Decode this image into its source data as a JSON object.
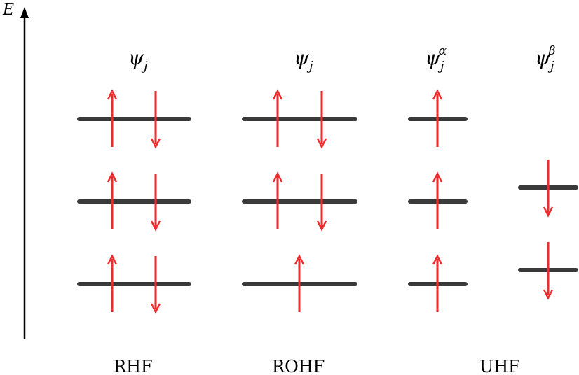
{
  "axis": {
    "label": "E"
  },
  "colors": {
    "level": "#3a3a3a",
    "arrow": "#ef2b2d",
    "axis": "#000000"
  },
  "methods": [
    {
      "name": "RHF",
      "orbital_labels": [
        {
          "base": "ψ",
          "sub": "j",
          "sup": ""
        }
      ]
    },
    {
      "name": "ROHF",
      "orbital_labels": [
        {
          "base": "ψ",
          "sub": "j",
          "sup": ""
        }
      ]
    },
    {
      "name": "UHF",
      "orbital_labels": [
        {
          "base": "ψ",
          "sub": "j",
          "sup": "α"
        },
        {
          "base": "ψ",
          "sub": "j",
          "sup": "β"
        }
      ]
    }
  ],
  "levels": {
    "RHF": [
      {
        "level": 1,
        "spins": [
          "up",
          "down"
        ]
      },
      {
        "level": 2,
        "spins": [
          "up",
          "down"
        ]
      },
      {
        "level": 3,
        "spins": [
          "up",
          "down"
        ]
      }
    ],
    "ROHF": [
      {
        "level": 1,
        "spins": [
          "up",
          "down"
        ]
      },
      {
        "level": 2,
        "spins": [
          "up",
          "down"
        ]
      },
      {
        "level": 3,
        "spins": [
          "up"
        ]
      }
    ],
    "UHF_alpha": [
      {
        "level": 1,
        "spins": [
          "up"
        ]
      },
      {
        "level": 2,
        "spins": [
          "up"
        ]
      },
      {
        "level": 3,
        "spins": [
          "up"
        ]
      }
    ],
    "UHF_beta": [
      {
        "level": 1,
        "spins": [
          "down"
        ]
      },
      {
        "level": 2,
        "spins": [
          "down"
        ]
      }
    ]
  }
}
